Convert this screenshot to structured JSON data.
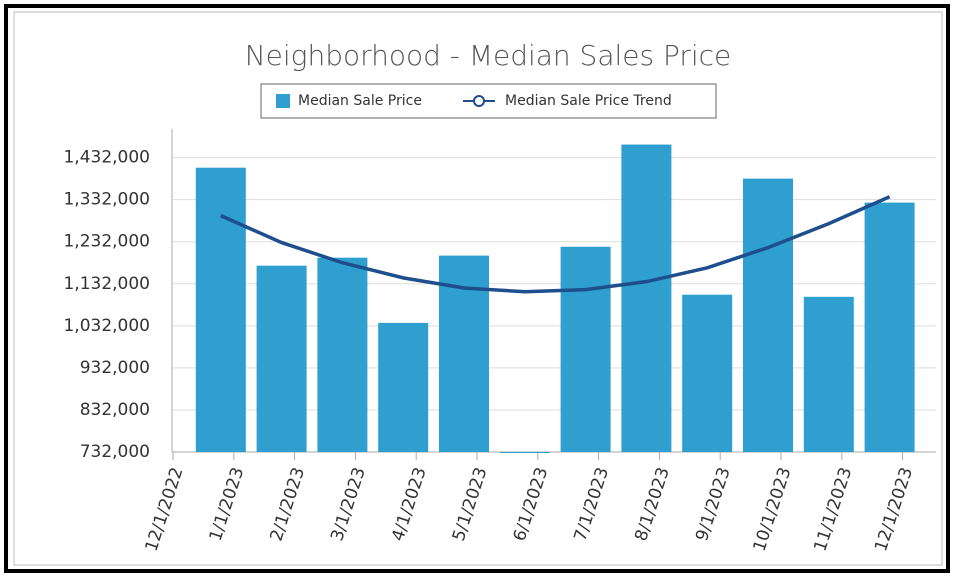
{
  "chart_data": {
    "type": "bar",
    "title": "Neighborhood - Median Sales Price",
    "categories": [
      "12/1/2022",
      "1/1/2023",
      "2/1/2023",
      "3/1/2023",
      "4/1/2023",
      "5/1/2023",
      "6/1/2023",
      "7/1/2023",
      "8/1/2023",
      "9/1/2023",
      "10/1/2023",
      "11/1/2023",
      "12/1/2023"
    ],
    "series": [
      {
        "name": "Median Sale Price",
        "type": "bar",
        "color": "#2e9fcf",
        "values": [
          null,
          1408000,
          1175000,
          1194000,
          1039000,
          1199000,
          732000,
          1220000,
          1463000,
          1106000,
          1382000,
          1101000,
          1325000
        ]
      },
      {
        "name": "Median Sale Price Trend",
        "type": "line",
        "color": "#1f4e8c",
        "values": [
          null,
          1294000,
          1230000,
          1182000,
          1146000,
          1122000,
          1113000,
          1118000,
          1137000,
          1170000,
          1218000,
          1275000,
          1339000
        ]
      }
    ],
    "ylim": [
      732000,
      1500000
    ],
    "yticks": [
      {
        "value": 732000,
        "label": "732,000"
      },
      {
        "value": 832000,
        "label": "832,000"
      },
      {
        "value": 932000,
        "label": "932,000"
      },
      {
        "value": 1032000,
        "label": "1,032,000"
      },
      {
        "value": 1132000,
        "label": "1,132,000"
      },
      {
        "value": 1232000,
        "label": "1,232,000"
      },
      {
        "value": 1332000,
        "label": "1,332,000"
      },
      {
        "value": 1432000,
        "label": "1,432,000"
      }
    ],
    "grid": true,
    "legend": "top"
  }
}
